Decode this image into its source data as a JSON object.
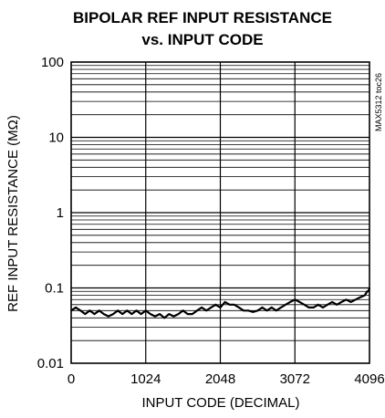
{
  "chart_data": {
    "type": "line",
    "title_line1": "BIPOLAR REF INPUT RESISTANCE",
    "title_line2": "vs. INPUT CODE",
    "xlabel": "INPUT CODE (DECIMAL)",
    "ylabel": "REF INPUT RESISTANCE (MΩ)",
    "figure_id": "MAX5312 toc26",
    "xlim": [
      0,
      4096
    ],
    "ylim": [
      0.01,
      100
    ],
    "yscale": "log",
    "grid": true,
    "xticks": [
      0,
      1024,
      2048,
      3072,
      4096
    ],
    "xtick_labels": [
      "0",
      "1024",
      "2048",
      "3072",
      "4096"
    ],
    "yticks": [
      0.01,
      0.1,
      1,
      10,
      100
    ],
    "ytick_labels": [
      "0.01",
      "0.1",
      "1",
      "10",
      "100"
    ],
    "line_color": "#000000",
    "series": [
      {
        "x": [
          0,
          64,
          128,
          192,
          256,
          320,
          384,
          448,
          512,
          576,
          640,
          704,
          768,
          832,
          896,
          960,
          1024,
          1088,
          1152,
          1216,
          1280,
          1344,
          1408,
          1472,
          1536,
          1600,
          1664,
          1728,
          1792,
          1856,
          1920,
          1984,
          2048,
          2112,
          2176,
          2240,
          2304,
          2368,
          2432,
          2496,
          2560,
          2624,
          2688,
          2752,
          2816,
          2880,
          2944,
          3008,
          3072,
          3136,
          3200,
          3264,
          3328,
          3392,
          3456,
          3520,
          3584,
          3648,
          3712,
          3776,
          3840,
          3904,
          3968,
          4032,
          4064,
          4080,
          4096
        ],
        "y": [
          0.05,
          0.055,
          0.05,
          0.045,
          0.05,
          0.045,
          0.05,
          0.045,
          0.042,
          0.045,
          0.05,
          0.045,
          0.05,
          0.045,
          0.05,
          0.045,
          0.05,
          0.045,
          0.042,
          0.045,
          0.04,
          0.045,
          0.042,
          0.045,
          0.05,
          0.045,
          0.045,
          0.05,
          0.055,
          0.05,
          0.055,
          0.06,
          0.055,
          0.065,
          0.06,
          0.06,
          0.055,
          0.05,
          0.05,
          0.048,
          0.05,
          0.055,
          0.05,
          0.055,
          0.05,
          0.055,
          0.06,
          0.065,
          0.07,
          0.065,
          0.06,
          0.055,
          0.055,
          0.06,
          0.055,
          0.06,
          0.065,
          0.06,
          0.065,
          0.07,
          0.065,
          0.07,
          0.075,
          0.08,
          0.09,
          0.09,
          0.1
        ]
      }
    ]
  }
}
